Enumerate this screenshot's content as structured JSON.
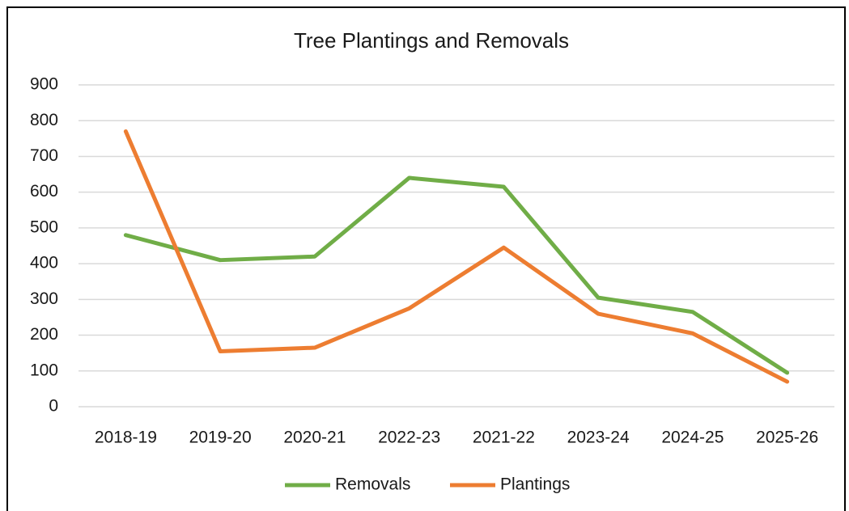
{
  "chart_data": {
    "type": "line",
    "title": "Tree Plantings and Removals",
    "categories": [
      "2018-19",
      "2019-20",
      "2020-21",
      "2022-23",
      "2021-22",
      "2023-24",
      "2024-25",
      "2025-26"
    ],
    "series": [
      {
        "name": "Removals",
        "color": "#70ad47",
        "values": [
          480,
          410,
          420,
          640,
          615,
          305,
          265,
          95
        ]
      },
      {
        "name": "Plantings",
        "color": "#ed7d31",
        "values": [
          770,
          155,
          165,
          275,
          445,
          260,
          205,
          70
        ]
      }
    ],
    "ylim": [
      0,
      900
    ],
    "yticks": [
      0,
      100,
      200,
      300,
      400,
      500,
      600,
      700,
      800,
      900
    ],
    "grid": true,
    "legend": "bottom"
  }
}
